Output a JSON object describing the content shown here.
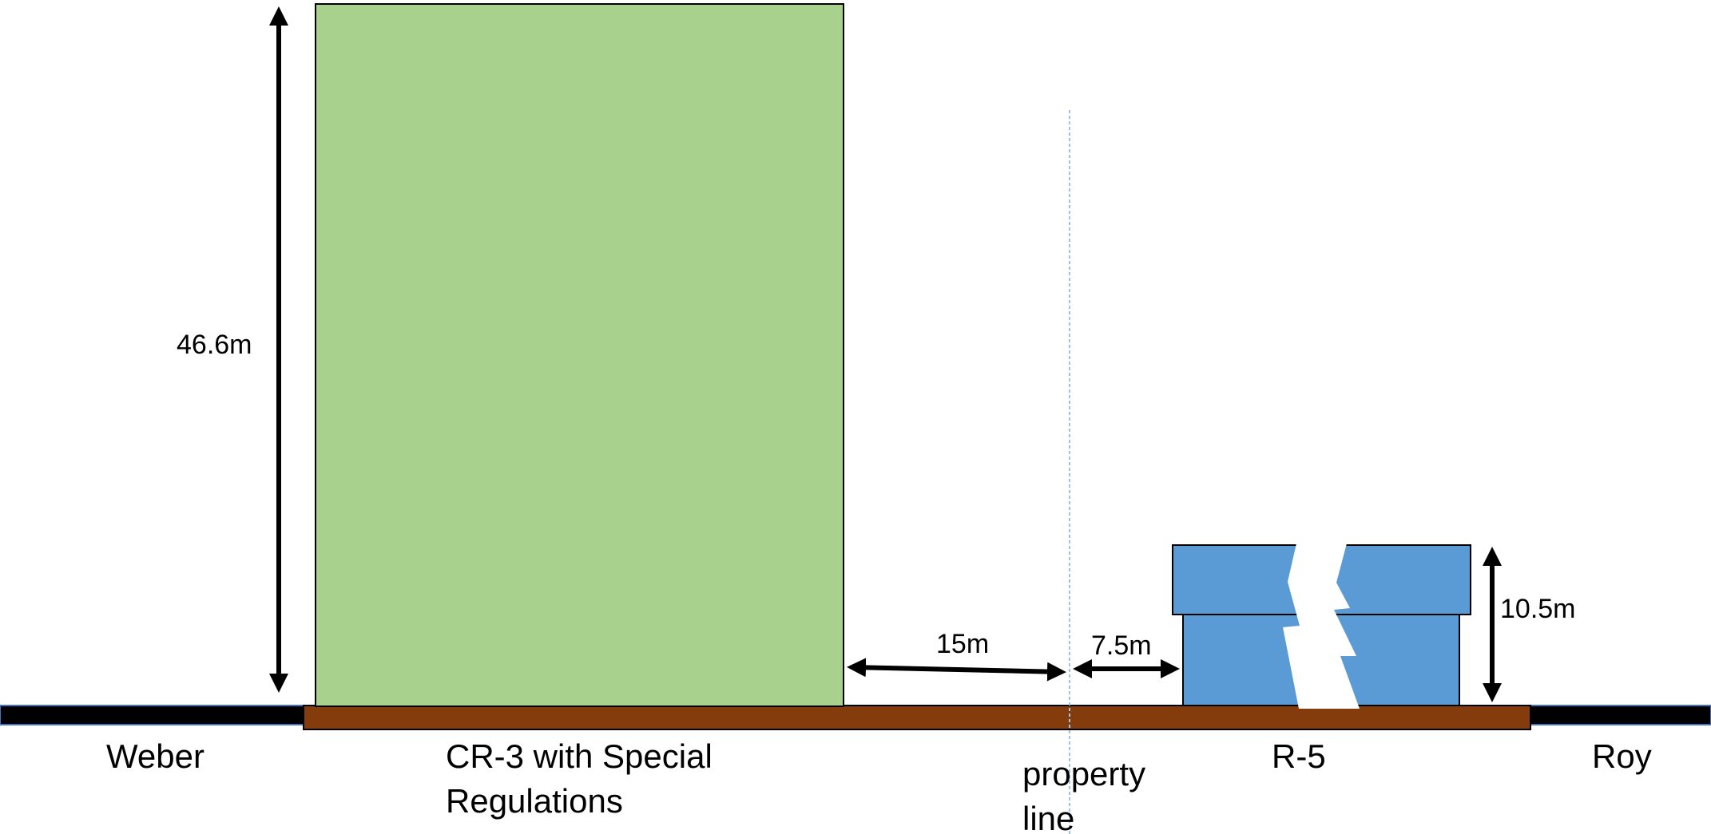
{
  "colors": {
    "tower": "#a9d18e",
    "house": "#5b9bd5",
    "ground": "#843c0c",
    "street": "#000000",
    "street_edge": "#4472c4",
    "property_line": "#9dc3e6",
    "arrow": "#000000"
  },
  "dimensions": {
    "tower_height": "46.6m",
    "tower_setback": "15m",
    "house_setback": "7.5m",
    "house_height": "10.5m"
  },
  "labels": {
    "weber": "Weber",
    "cr3_line1": "CR-3 with Special",
    "cr3_line2": "Regulations",
    "property_line1": "property",
    "property_line2": "line",
    "r5": "R-5",
    "roy": "Roy"
  }
}
